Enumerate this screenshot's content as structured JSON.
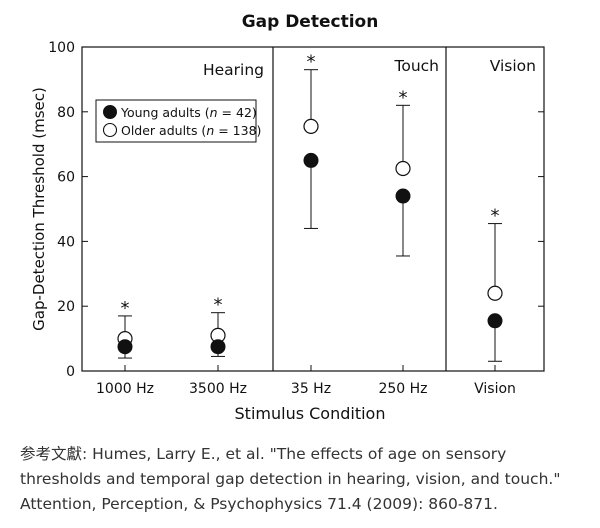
{
  "chart_data": {
    "type": "scatter",
    "title": "Gap Detection",
    "xlabel": "Stimulus Condition",
    "ylabel": "Gap-Detection Threshold (msec)",
    "ylim": [
      0,
      100
    ],
    "yticks": [
      0,
      20,
      40,
      60,
      80,
      100
    ],
    "categories": [
      "1000 Hz",
      "3500 Hz",
      "35 Hz",
      "250 Hz",
      "Vision"
    ],
    "panels": [
      {
        "label": "Hearing",
        "categories": [
          "1000 Hz",
          "3500 Hz"
        ]
      },
      {
        "label": "Touch",
        "categories": [
          "35 Hz",
          "250 Hz"
        ]
      },
      {
        "label": "Vision",
        "categories": [
          "Vision"
        ]
      }
    ],
    "series": [
      {
        "name": "Young adults",
        "legend_prefix": "Young adults (",
        "legend_n": "n",
        "legend_suffix": " = 42)",
        "marker": "filled-circle",
        "values": [
          7.5,
          7.5,
          65,
          54,
          15.5
        ],
        "error_lower": [
          4,
          4.5,
          44,
          35.5,
          3
        ],
        "error_upper": [
          null,
          null,
          null,
          null,
          null
        ]
      },
      {
        "name": "Older adults",
        "legend_prefix": "Older adults (",
        "legend_n": "n",
        "legend_suffix": " = 138)",
        "marker": "open-circle",
        "values": [
          10,
          11,
          75.5,
          62.5,
          24
        ],
        "error_lower": [
          null,
          null,
          null,
          null,
          null
        ],
        "error_upper": [
          17,
          18,
          93,
          82,
          45.5
        ]
      }
    ],
    "significance_marker": "*",
    "significant": [
      true,
      true,
      true,
      true,
      true
    ],
    "legend_position": "upper-left of Hearing panel",
    "grid": false
  },
  "caption": {
    "line1": "参考文獻: Humes, Larry E., et al. \"The effects of age on sensory",
    "line2": "thresholds and temporal gap detection in hearing, vision, and touch.\"",
    "line3": "Attention, Perception, & Psychophysics 71.4 (2009): 860-871."
  }
}
